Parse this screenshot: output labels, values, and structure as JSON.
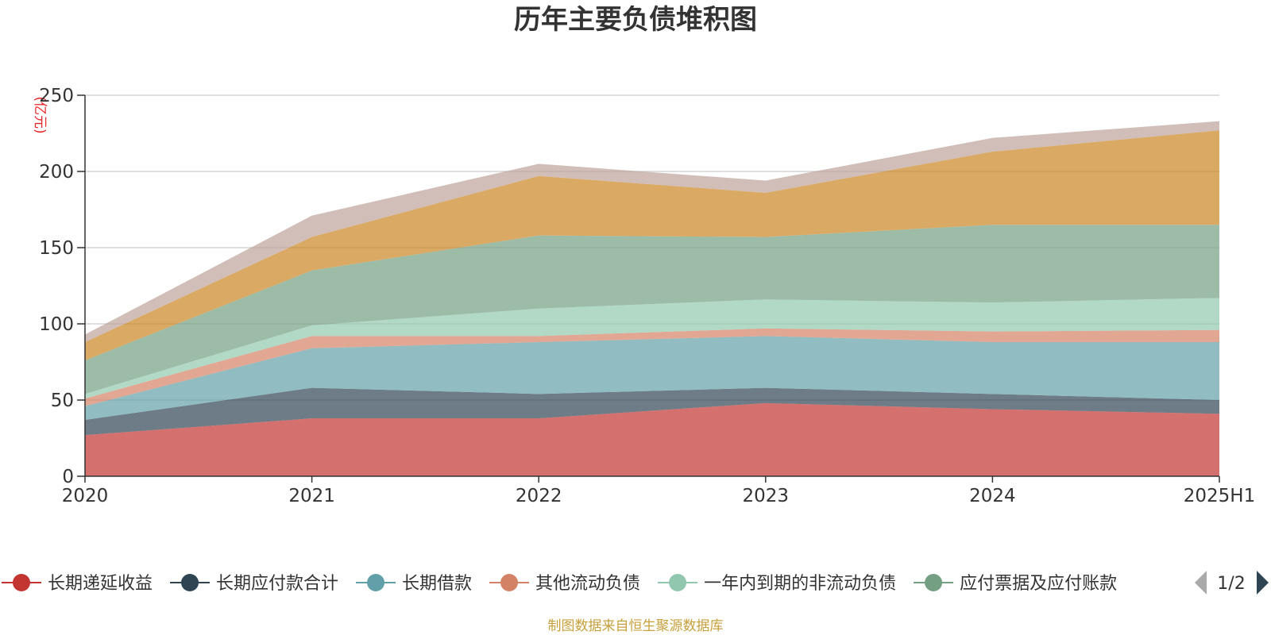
{
  "chart_data": {
    "type": "area",
    "stacked": true,
    "title": "历年主要负债堆积图",
    "unit_label": "(亿元)",
    "x": [
      "2020",
      "2021",
      "2022",
      "2023",
      "2024",
      "2025H1"
    ],
    "ylim": [
      0,
      250
    ],
    "yticks": [
      "0",
      "50",
      "100",
      "150",
      "200",
      "250"
    ],
    "grid": true,
    "series": [
      {
        "name": "长期递延收益",
        "color": "#c23531",
        "values": [
          27,
          38,
          38,
          48,
          44,
          41
        ]
      },
      {
        "name": "长期应付款合计",
        "color": "#2f4554",
        "values": [
          10,
          20,
          16,
          10,
          10,
          9
        ]
      },
      {
        "name": "长期借款",
        "color": "#61a0a8",
        "values": [
          9,
          26,
          34,
          34,
          34,
          38
        ]
      },
      {
        "name": "其他流动负债",
        "color": "#d48265",
        "values": [
          5,
          8,
          4,
          5,
          7,
          8
        ]
      },
      {
        "name": "一年内到期的非流动负债",
        "color": "#91c7ae",
        "values": [
          3,
          7,
          18,
          19,
          19,
          21
        ]
      },
      {
        "name": "应付票据及应付账款",
        "color": "#749f83",
        "values": [
          22,
          36,
          48,
          41,
          51,
          48
        ]
      },
      {
        "name": "",
        "color": "#ca8622",
        "values": [
          12,
          22,
          39,
          29,
          48,
          62
        ]
      },
      {
        "name": "",
        "color": "#bda29a",
        "values": [
          5,
          14,
          8,
          8,
          9,
          6
        ]
      }
    ]
  },
  "legend": {
    "items": [
      {
        "label": "长期递延收益",
        "color": "#c23531"
      },
      {
        "label": "长期应付款合计",
        "color": "#2f4554"
      },
      {
        "label": "长期借款",
        "color": "#61a0a8"
      },
      {
        "label": "其他流动负债",
        "color": "#d48265"
      },
      {
        "label": "一年内到期的非流动负债",
        "color": "#91c7ae"
      },
      {
        "label": "应付票据及应付账款",
        "color": "#749f83"
      }
    ],
    "page_indicator": "1/2",
    "prev_icon": "triangle-left-icon",
    "next_icon": "triangle-right-icon"
  },
  "source_text": "制图数据来自恒生聚源数据库"
}
